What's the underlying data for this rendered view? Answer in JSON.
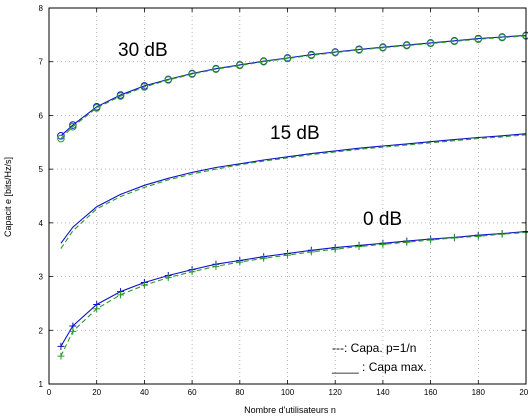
{
  "chart_data": {
    "type": "line",
    "xlabel": "Nombre d'utilisateurs n",
    "ylabel": "Capacit e [bits/Hz/s]",
    "xlim": [
      0,
      200
    ],
    "ylim": [
      1,
      8
    ],
    "xticks": [
      0,
      20,
      40,
      60,
      80,
      100,
      120,
      140,
      160,
      180,
      200
    ],
    "yticks": [
      1,
      2,
      3,
      4,
      5,
      6,
      7,
      8
    ],
    "grid": true,
    "x": [
      5,
      10,
      20,
      30,
      40,
      50,
      60,
      70,
      80,
      90,
      100,
      110,
      120,
      130,
      140,
      150,
      160,
      170,
      180,
      190,
      200
    ],
    "annotations": [
      "30 dB",
      "15 dB",
      "0 dB"
    ],
    "legend": {
      "position": "bottom-right",
      "entries": [
        {
          "style": "dashed",
          "label": "---: Capa. p=1/n"
        },
        {
          "style": "solid",
          "label": "____ : Capa max."
        }
      ]
    },
    "series": [
      {
        "group": "30 dB",
        "kind": "max",
        "color": "#1010c8",
        "marker": "circle",
        "values": [
          5.62,
          5.82,
          6.16,
          6.38,
          6.55,
          6.67,
          6.78,
          6.87,
          6.94,
          7.01,
          7.07,
          7.13,
          7.18,
          7.23,
          7.27,
          7.31,
          7.35,
          7.39,
          7.43,
          7.46,
          7.49
        ]
      },
      {
        "group": "30 dB",
        "kind": "p=1/n",
        "color": "#2a9a2a",
        "marker": "circle",
        "values": [
          5.57,
          5.79,
          6.14,
          6.36,
          6.53,
          6.66,
          6.77,
          6.86,
          6.93,
          7.0,
          7.06,
          7.12,
          7.17,
          7.22,
          7.26,
          7.3,
          7.34,
          7.38,
          7.42,
          7.45,
          7.48
        ]
      },
      {
        "group": "15 dB",
        "kind": "max",
        "color": "#1010c8",
        "marker": "none",
        "values": [
          3.62,
          3.92,
          4.3,
          4.53,
          4.7,
          4.83,
          4.94,
          5.03,
          5.1,
          5.17,
          5.23,
          5.29,
          5.34,
          5.39,
          5.43,
          5.47,
          5.51,
          5.55,
          5.59,
          5.62,
          5.66
        ]
      },
      {
        "group": "15 dB",
        "kind": "p=1/n",
        "color": "#2a9a2a",
        "marker": "none",
        "values": [
          3.52,
          3.85,
          4.26,
          4.49,
          4.66,
          4.8,
          4.91,
          5.0,
          5.08,
          5.15,
          5.21,
          5.27,
          5.32,
          5.37,
          5.41,
          5.45,
          5.49,
          5.53,
          5.57,
          5.6,
          5.64
        ]
      },
      {
        "group": "0 dB",
        "kind": "max",
        "color": "#1010c8",
        "marker": "plus",
        "values": [
          1.7,
          2.08,
          2.48,
          2.72,
          2.89,
          3.02,
          3.13,
          3.23,
          3.3,
          3.37,
          3.43,
          3.49,
          3.54,
          3.58,
          3.62,
          3.66,
          3.7,
          3.73,
          3.77,
          3.8,
          3.84
        ]
      },
      {
        "group": "0 dB",
        "kind": "p=1/n",
        "color": "#2a9a2a",
        "marker": "plus",
        "values": [
          1.52,
          1.98,
          2.4,
          2.66,
          2.84,
          2.98,
          3.09,
          3.19,
          3.27,
          3.34,
          3.4,
          3.46,
          3.51,
          3.56,
          3.6,
          3.64,
          3.68,
          3.72,
          3.75,
          3.79,
          3.82
        ]
      }
    ]
  }
}
